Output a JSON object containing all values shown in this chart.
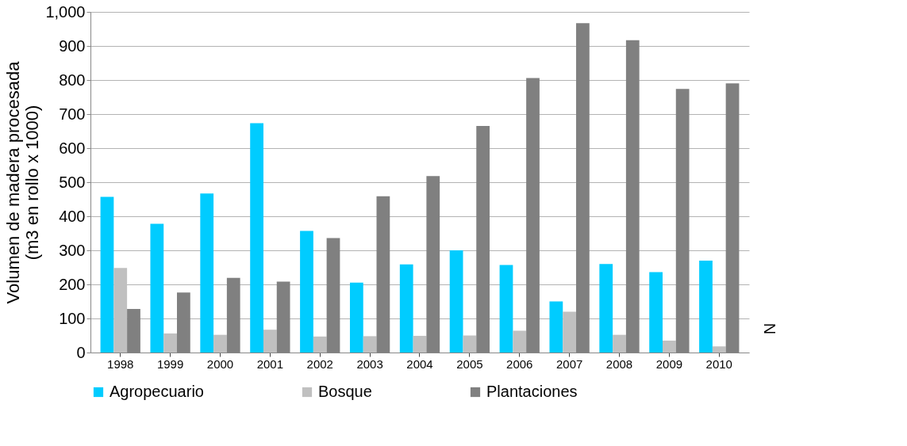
{
  "chart_data": {
    "type": "bar",
    "ylabel": "Volumen de madera procesada\n(m3 en rollo x 1000)",
    "categories": [
      "1998",
      "1999",
      "2000",
      "2001",
      "2002",
      "2003",
      "2004",
      "2005",
      "2006",
      "2007",
      "2008",
      "2009",
      "2010"
    ],
    "series": [
      {
        "name": "Agropecuario",
        "color": "#00ccff",
        "values": [
          457,
          378,
          467,
          673,
          357,
          205,
          259,
          300,
          257,
          150,
          260,
          236,
          270
        ]
      },
      {
        "name": "Bosque",
        "color": "#c0c0c0",
        "values": [
          248,
          56,
          52,
          67,
          47,
          48,
          49,
          50,
          64,
          120,
          52,
          35,
          18
        ]
      },
      {
        "name": "Plantaciones",
        "color": "#808080",
        "values": [
          128,
          176,
          219,
          208,
          336,
          459,
          518,
          665,
          806,
          967,
          917,
          774,
          790
        ]
      }
    ],
    "ylim": [
      0,
      1000
    ],
    "yticks": [
      0,
      100,
      200,
      300,
      400,
      500,
      600,
      700,
      800,
      900,
      {
        "value": 1000,
        "label": "1,000"
      }
    ],
    "grid": "y",
    "legend": "bottom",
    "annotations": [
      "N"
    ]
  }
}
